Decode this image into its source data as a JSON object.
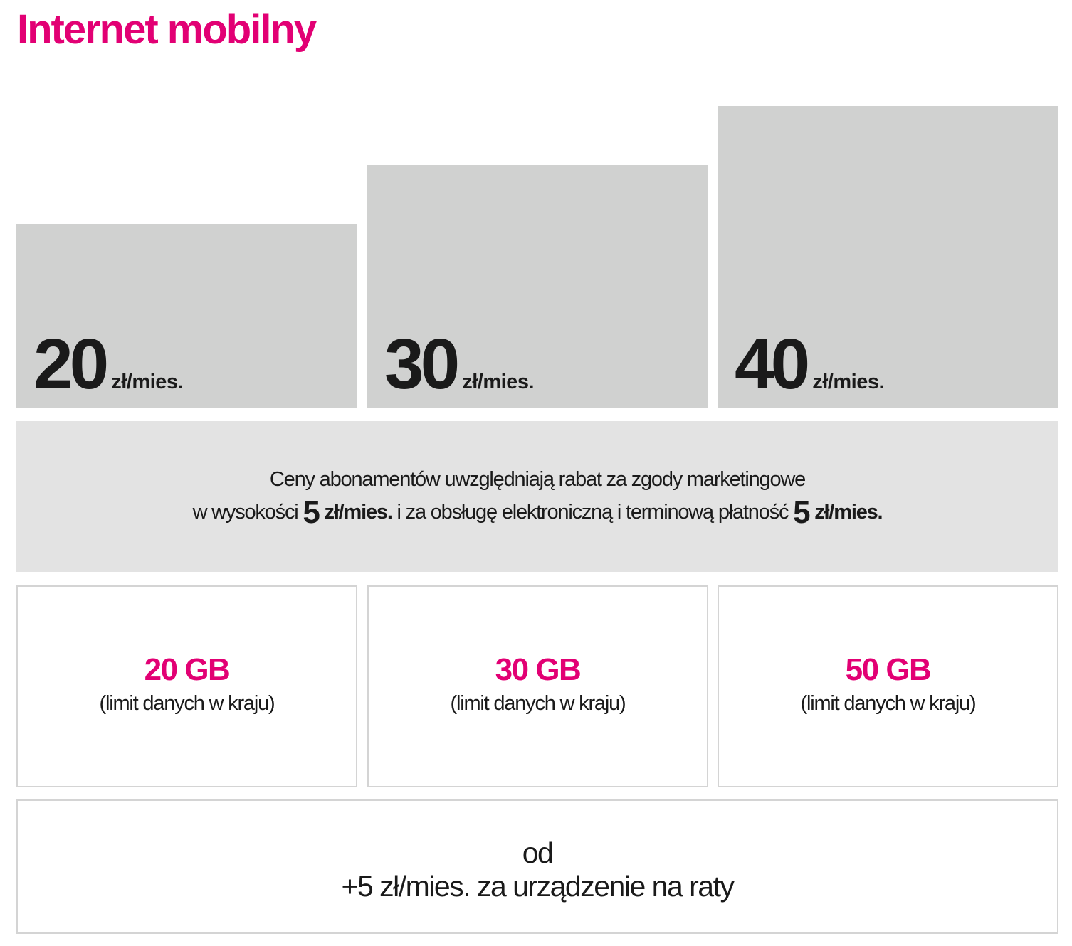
{
  "title": "Internet mobilny",
  "colors": {
    "accent": "#E20074",
    "bar": "#d0d1d0",
    "note_bg": "#e3e3e3"
  },
  "plans": [
    {
      "price": "20",
      "unit": "zł/mies.",
      "data": "20 GB",
      "data_note": "(limit danych w kraju)"
    },
    {
      "price": "30",
      "unit": "zł/mies.",
      "data": "30 GB",
      "data_note": "(limit danych w kraju)"
    },
    {
      "price": "40",
      "unit": "zł/mies.",
      "data": "50 GB",
      "data_note": "(limit danych w kraju)"
    }
  ],
  "note": {
    "line1": "Ceny abonamentów uwzględniają rabat za zgody marketingowe",
    "line2_a": "w wysokości ",
    "amount1": "5",
    "unit1": " zł/mies.",
    "line2_b": " i za obsługę elektroniczną i terminową płatność ",
    "amount2": "5",
    "unit2": " zł/mies."
  },
  "device": {
    "line1": "od",
    "line2": "+5 zł/mies. za urządzenie na raty"
  }
}
